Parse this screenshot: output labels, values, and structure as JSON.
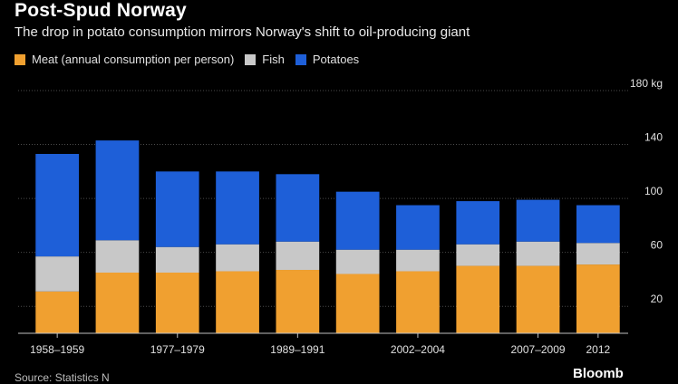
{
  "header": {
    "title": "Post-Spud Norway",
    "subtitle": "The drop in potato consumption mirrors Norway's shift to oil-producing giant"
  },
  "legend": {
    "items": [
      {
        "label": "Meat (annual consumption per person)",
        "color": "#f0a030"
      },
      {
        "label": "Fish",
        "color": "#c8c8c8"
      },
      {
        "label": "Potatoes",
        "color": "#1e5fd8"
      }
    ]
  },
  "footer": {
    "source": "Source: Statistics N",
    "brand": "Bloomb"
  },
  "chart_data": {
    "type": "bar",
    "stacked": true,
    "title": "Post-Spud Norway",
    "subtitle": "The drop in potato consumption mirrors Norway's shift to oil-producing giant",
    "categories": [
      "1958-1959",
      "",
      "1977-1979",
      "",
      "1989-1991",
      "",
      "2002-2004",
      "",
      "2007-2009",
      "2012"
    ],
    "x_tick_labels": [
      "1958–1959",
      "1977–1979",
      "1989–1991",
      "2002–2004",
      "2007–2009",
      "2012"
    ],
    "series": [
      {
        "name": "Meat (annual consumption per person)",
        "color": "#f0a030",
        "values": [
          31,
          45,
          45,
          46,
          47,
          44,
          46,
          50,
          50,
          51
        ]
      },
      {
        "name": "Fish",
        "color": "#c8c8c8",
        "values": [
          26,
          24,
          19,
          20,
          21,
          18,
          16,
          16,
          18,
          16
        ]
      },
      {
        "name": "Potatoes",
        "color": "#1e5fd8",
        "values": [
          76,
          74,
          56,
          54,
          50,
          43,
          33,
          32,
          31,
          28
        ]
      }
    ],
    "y_ticks": [
      "20",
      "60",
      "100",
      "140",
      "180 kg"
    ],
    "y_tick_values": [
      20,
      60,
      100,
      140,
      180
    ],
    "ylim": [
      0,
      180
    ],
    "y_axis_position": "right",
    "grid": true,
    "legend_position": "top-left",
    "colors": {
      "grid": "#4a4a4a",
      "axis": "#bfbfbf"
    }
  }
}
